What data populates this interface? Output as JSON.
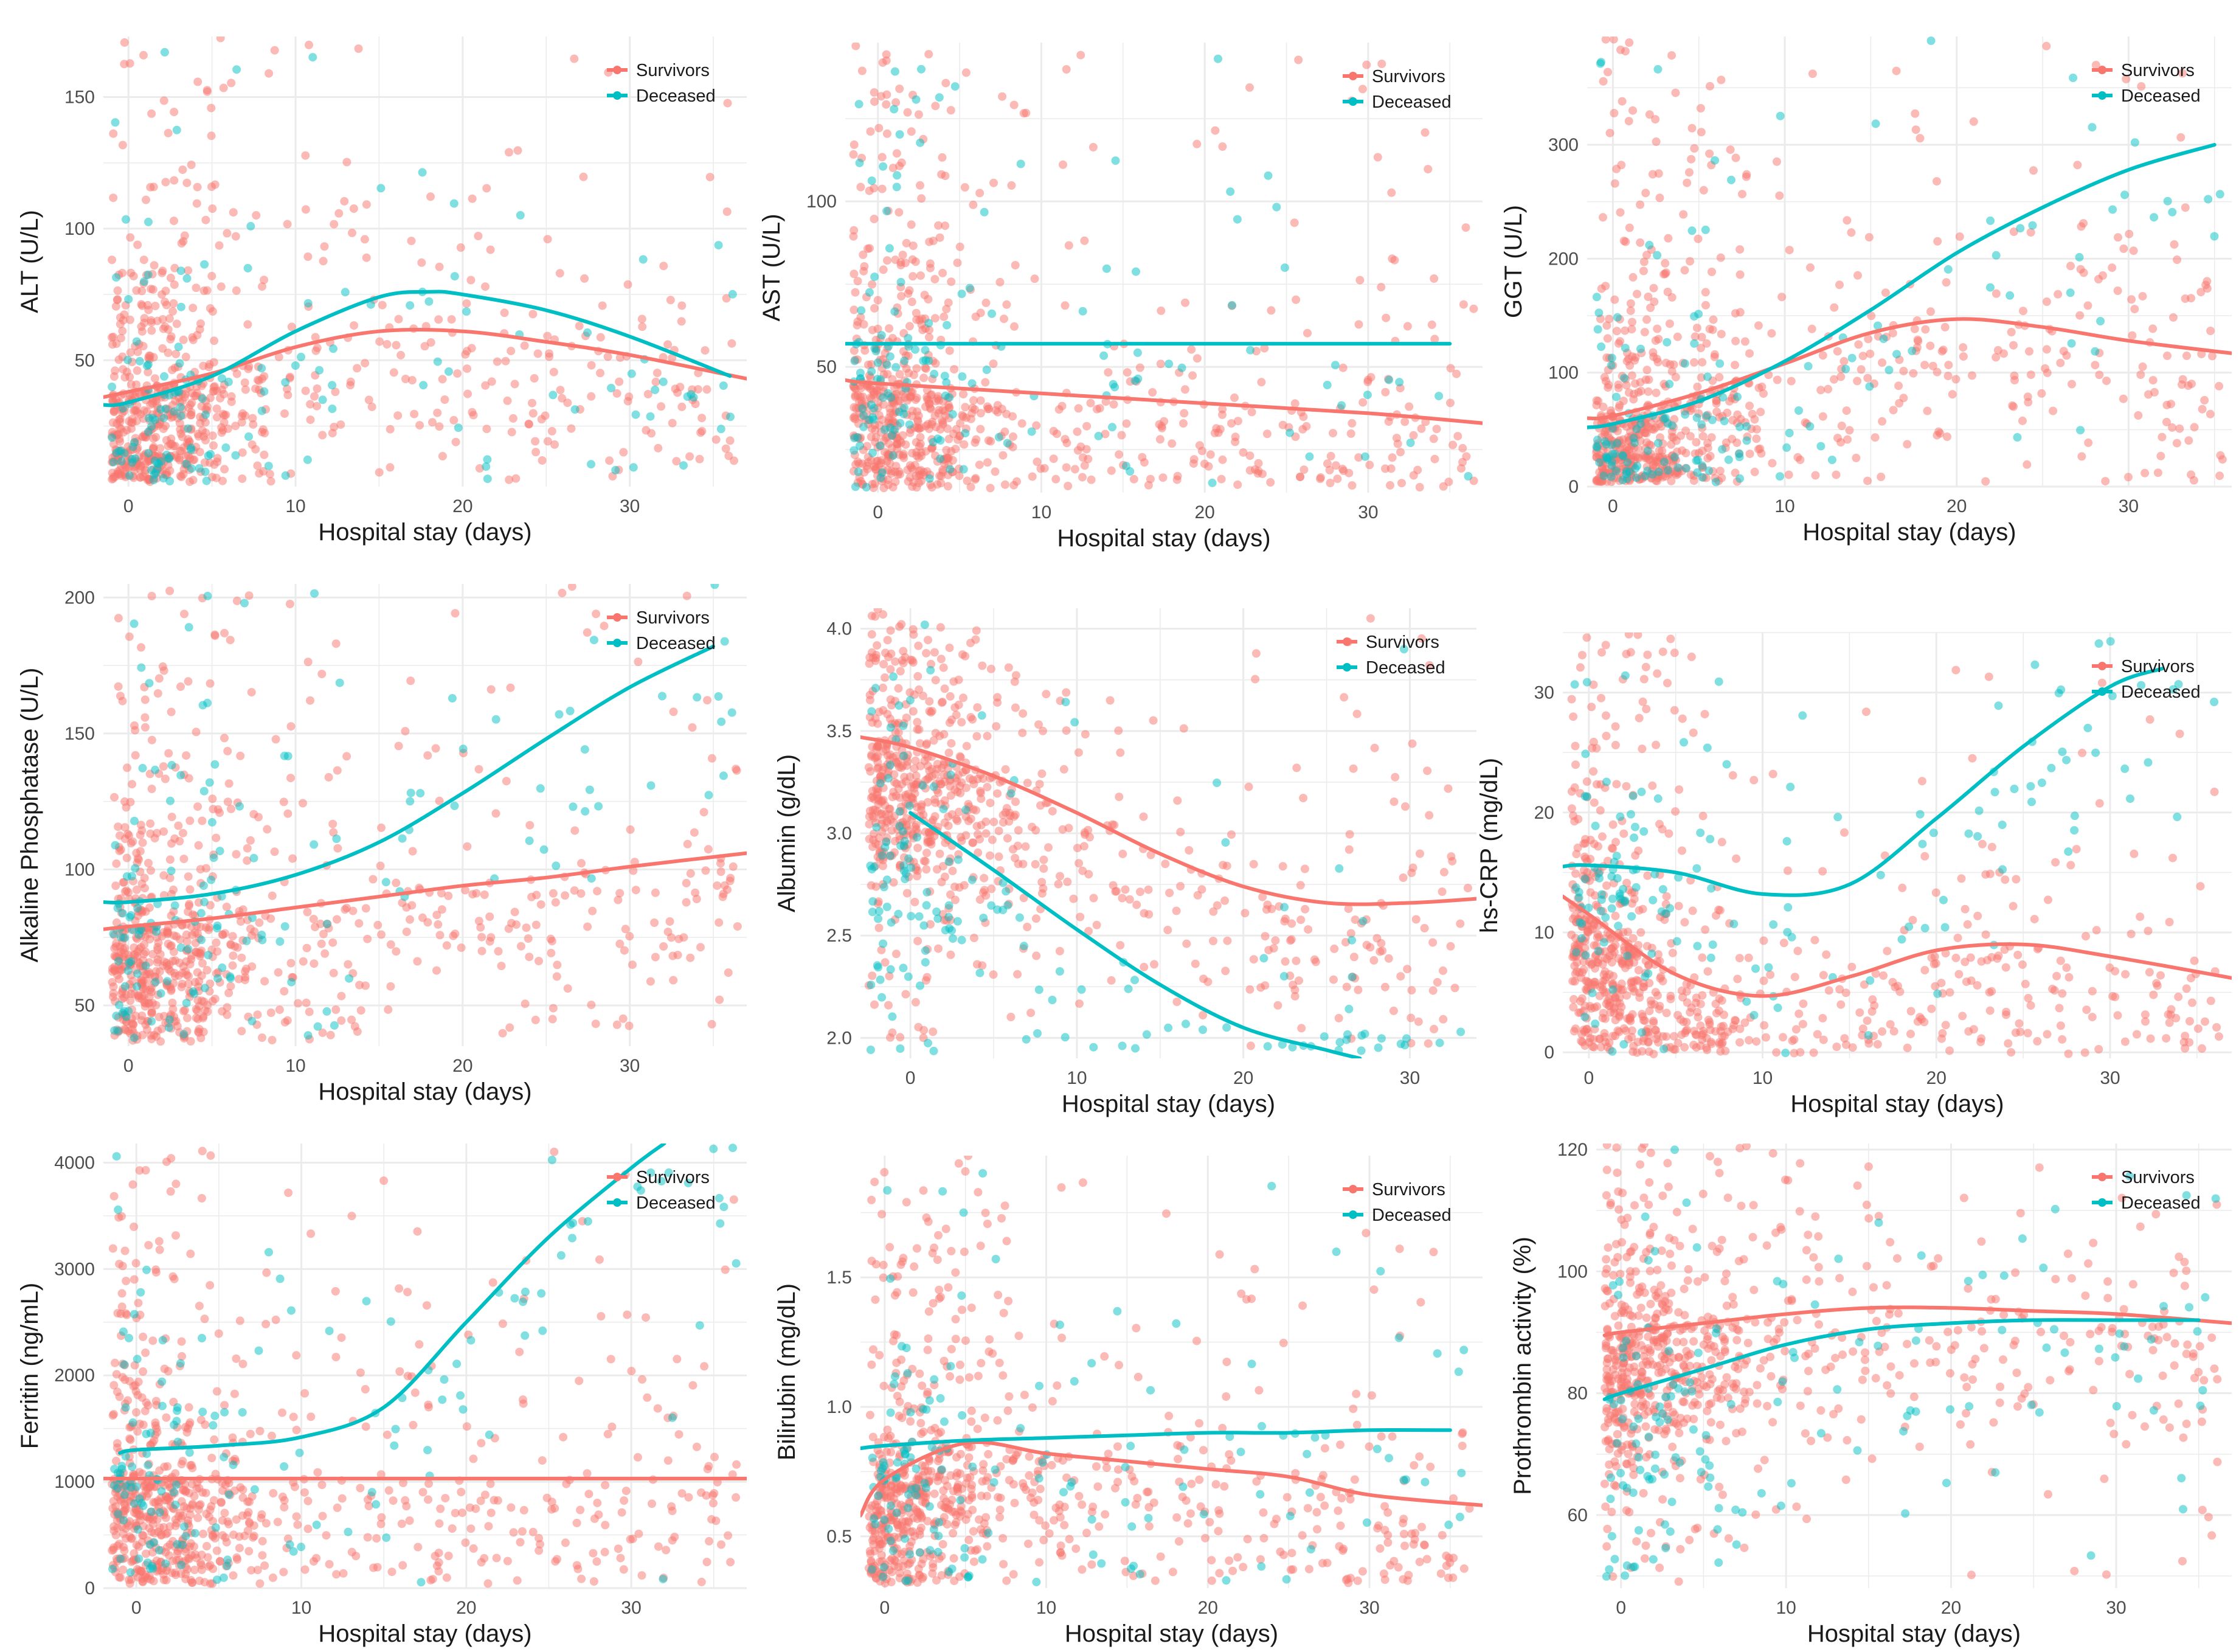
{
  "colors": {
    "survivors": "#F8766D",
    "deceased": "#00BFC4",
    "grid": "#EBEBEB"
  },
  "chart_data": [
    {
      "type": "scatter",
      "title": "",
      "xlabel": "Hospital stay (days)",
      "ylabel": "ALT (U/L)",
      "xlim": [
        -1.5,
        37
      ],
      "ylim": [
        2,
        173
      ],
      "xticks": [
        0,
        10,
        20,
        30
      ],
      "yticks": [
        50,
        100,
        150
      ],
      "legend": {
        "position": "top-right",
        "entries": [
          "Survivors",
          "Deceased"
        ]
      },
      "series": [
        {
          "name": "Survivors",
          "fit": {
            "x": [
              -1.5,
              0,
              5,
              10,
              15,
              20,
              25,
              30,
              37
            ],
            "y": [
              36,
              38,
              45,
              55,
              61,
              61,
              57,
              52,
              43
            ]
          }
        },
        {
          "name": "Deceased",
          "fit": {
            "x": [
              -1.5,
              0,
              5,
              10,
              15,
              18,
              20,
              25,
              30,
              36
            ],
            "y": [
              33,
              34,
              44,
              61,
              74,
              76,
              75,
              69,
              59,
              44
            ]
          }
        }
      ]
    },
    {
      "type": "scatter",
      "title": "",
      "xlabel": "Hospital stay (days)",
      "ylabel": "AST (U/L)",
      "xlim": [
        -2,
        37
      ],
      "ylim": [
        12,
        148
      ],
      "xticks": [
        0,
        10,
        20,
        30
      ],
      "yticks": [
        50,
        100
      ],
      "legend": {
        "position": "top-right",
        "entries": [
          "Survivors",
          "Deceased"
        ]
      },
      "series": [
        {
          "name": "Survivors",
          "fit": {
            "x": [
              -2,
              0,
              10,
              20,
              30,
              37
            ],
            "y": [
              46,
              45,
              42,
              39,
              36,
              33
            ]
          }
        },
        {
          "name": "Deceased",
          "fit": {
            "x": [
              -2,
              0,
              10,
              20,
              30,
              35
            ],
            "y": [
              57,
              57,
              57,
              57,
              57,
              57
            ]
          }
        }
      ]
    },
    {
      "type": "scatter",
      "title": "",
      "xlabel": "Hospital stay (days)",
      "ylabel": "GGT (U/L)",
      "xlim": [
        -1.5,
        36
      ],
      "ylim": [
        0,
        395
      ],
      "xticks": [
        0,
        10,
        20,
        30
      ],
      "yticks": [
        0,
        100,
        200,
        300
      ],
      "legend": {
        "position": "top-right",
        "entries": [
          "Survivors",
          "Deceased"
        ]
      },
      "series": [
        {
          "name": "Survivors",
          "fit": {
            "x": [
              -1.5,
              0,
              5,
              10,
              15,
              20,
              25,
              30,
              36
            ],
            "y": [
              60,
              62,
              82,
              108,
              135,
              147,
              140,
              128,
              117
            ]
          }
        },
        {
          "name": "Deceased",
          "fit": {
            "x": [
              -1.5,
              0,
              5,
              10,
              15,
              20,
              25,
              30,
              35
            ],
            "y": [
              52,
              55,
              75,
              110,
              155,
              205,
              245,
              278,
              300
            ]
          }
        }
      ]
    },
    {
      "type": "scatter",
      "title": "",
      "xlabel": "Hospital stay (days)",
      "ylabel": "Alkaline Phosphatase (U/L)",
      "xlim": [
        -1.5,
        37
      ],
      "ylim": [
        35,
        205
      ],
      "xticks": [
        0,
        10,
        20,
        30
      ],
      "yticks": [
        50,
        100,
        150,
        200
      ],
      "legend": {
        "position": "top-right",
        "entries": [
          "Survivors",
          "Deceased"
        ]
      },
      "series": [
        {
          "name": "Survivors",
          "fit": {
            "x": [
              -1.5,
              0,
              5,
              10,
              15,
              20,
              25,
              30,
              37
            ],
            "y": [
              78,
              79,
              82,
              86,
              90,
              94,
              97,
              101,
              106
            ]
          }
        },
        {
          "name": "Deceased",
          "fit": {
            "x": [
              -1.5,
              0,
              5,
              10,
              15,
              20,
              25,
              30,
              35
            ],
            "y": [
              88,
              88,
              91,
              98,
              110,
              128,
              148,
              167,
              182
            ]
          }
        }
      ]
    },
    {
      "type": "scatter",
      "title": "",
      "xlabel": "Hospital stay (days)",
      "ylabel": "Albumin (g/dL)",
      "xlim": [
        -3,
        34
      ],
      "ylim": [
        1.9,
        4.1
      ],
      "xticks": [
        0,
        10,
        20,
        30
      ],
      "yticks": [
        2.0,
        2.5,
        3.0,
        3.5,
        4.0
      ],
      "legend": {
        "position": "top-right",
        "entries": [
          "Survivors",
          "Deceased"
        ]
      },
      "series": [
        {
          "name": "Survivors",
          "fit": {
            "x": [
              -3,
              0,
              5,
              10,
              15,
              20,
              25,
              30,
              34
            ],
            "y": [
              3.47,
              3.42,
              3.28,
              3.1,
              2.9,
              2.74,
              2.66,
              2.66,
              2.68
            ]
          }
        },
        {
          "name": "Deceased",
          "fit": {
            "x": [
              0,
              5,
              10,
              15,
              20,
              25,
              27
            ],
            "y": [
              3.1,
              2.82,
              2.53,
              2.26,
              2.05,
              1.94,
              1.9
            ]
          }
        }
      ]
    },
    {
      "type": "scatter",
      "title": "",
      "xlabel": "Hospital stay (days)",
      "ylabel": "hs-CRP (mg/dL)",
      "xlim": [
        -1.5,
        37
      ],
      "ylim": [
        -0.5,
        35
      ],
      "xticks": [
        0,
        10,
        20,
        30
      ],
      "yticks": [
        0,
        10,
        20,
        30
      ],
      "legend": {
        "position": "top-right",
        "entries": [
          "Survivors",
          "Deceased"
        ]
      },
      "series": [
        {
          "name": "Survivors",
          "fit": {
            "x": [
              -1.5,
              0,
              5,
              10,
              15,
              20,
              25,
              30,
              37
            ],
            "y": [
              13,
              11.5,
              6.5,
              4.7,
              6.3,
              8.5,
              9,
              8,
              6.2
            ]
          }
        },
        {
          "name": "Deceased",
          "fit": {
            "x": [
              -1.5,
              0,
              5,
              10,
              15,
              20,
              25,
              30,
              33
            ],
            "y": [
              15.5,
              15.6,
              15,
              13.2,
              14,
              19.5,
              25.5,
              30.5,
              32
            ]
          }
        }
      ]
    },
    {
      "type": "scatter",
      "title": "",
      "xlabel": "Hospital stay (days)",
      "ylabel": "Ferritin (ng/mL)",
      "xlim": [
        -2,
        37
      ],
      "ylim": [
        0,
        4180
      ],
      "xticks": [
        0,
        10,
        20,
        30
      ],
      "yticks": [
        0,
        1000,
        2000,
        3000,
        4000
      ],
      "legend": {
        "position": "top-right",
        "entries": [
          "Survivors",
          "Deceased"
        ]
      },
      "series": [
        {
          "name": "Survivors",
          "fit": {
            "x": [
              -2,
              0,
              10,
              20,
              30,
              37
            ],
            "y": [
              1030,
              1030,
              1030,
              1030,
              1030,
              1030
            ]
          }
        },
        {
          "name": "Deceased",
          "fit": {
            "x": [
              -1,
              0,
              5,
              10,
              15,
              20,
              25,
              30,
              32
            ],
            "y": [
              1270,
              1300,
              1340,
              1420,
              1700,
              2500,
              3300,
              3950,
              4180
            ]
          }
        }
      ]
    },
    {
      "type": "scatter",
      "title": "",
      "xlabel": "Hospital stay (days)",
      "ylabel": "Bilirubin (mg/dL)",
      "xlim": [
        -1.5,
        37
      ],
      "ylim": [
        0.3,
        1.97
      ],
      "xticks": [
        0,
        10,
        20,
        30
      ],
      "yticks": [
        0.5,
        1.0,
        1.5
      ],
      "legend": {
        "position": "top-right",
        "entries": [
          "Survivors",
          "Deceased"
        ]
      },
      "series": [
        {
          "name": "Survivors",
          "fit": {
            "x": [
              -1.5,
              0,
              5,
              10,
              15,
              20,
              25,
              30,
              37
            ],
            "y": [
              0.58,
              0.72,
              0.86,
              0.82,
              0.79,
              0.76,
              0.73,
              0.66,
              0.62
            ]
          }
        },
        {
          "name": "Deceased",
          "fit": {
            "x": [
              -1.5,
              0,
              5,
              10,
              15,
              20,
              25,
              30,
              35
            ],
            "y": [
              0.84,
              0.85,
              0.87,
              0.88,
              0.89,
              0.9,
              0.9,
              0.91,
              0.91
            ]
          }
        }
      ]
    },
    {
      "type": "scatter",
      "title": "",
      "xlabel": "Hospital stay (days)",
      "ylabel": "Prothrombin activity (%)",
      "xlim": [
        -1.5,
        37
      ],
      "ylim": [
        48,
        121
      ],
      "xticks": [
        0,
        10,
        20,
        30
      ],
      "yticks": [
        60,
        80,
        100,
        120
      ],
      "legend": {
        "position": "top-right",
        "entries": [
          "Survivors",
          "Deceased"
        ]
      },
      "series": [
        {
          "name": "Survivors",
          "fit": {
            "x": [
              -1,
              0,
              5,
              10,
              15,
              20,
              25,
              30,
              37
            ],
            "y": [
              89.5,
              90,
              91.5,
              93,
              94,
              94,
              93.5,
              93,
              91.5
            ]
          }
        },
        {
          "name": "Deceased",
          "fit": {
            "x": [
              -1,
              0,
              5,
              10,
              15,
              20,
              25,
              30,
              35
            ],
            "y": [
              79,
              80,
              84,
              88,
              90.5,
              91.5,
              92,
              92,
              92
            ]
          }
        }
      ]
    }
  ]
}
